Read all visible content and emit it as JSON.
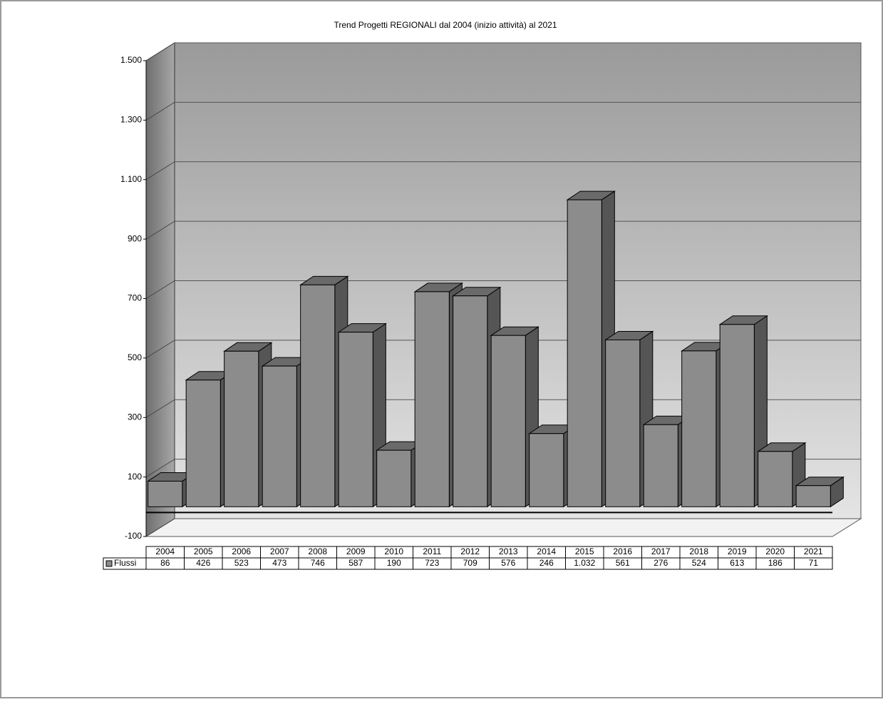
{
  "chart_data": {
    "type": "bar3d",
    "title": "Trend Progetti REGIONALI dal 2004 (inizio attività)  al 2021",
    "categories": [
      "2004",
      "2005",
      "2006",
      "2007",
      "2008",
      "2009",
      "2010",
      "2011",
      "2012",
      "2013",
      "2014",
      "2015",
      "2016",
      "2017",
      "2018",
      "2019",
      "2020",
      "2021"
    ],
    "series": [
      {
        "name": "Flussi",
        "color": "#8c8c8c",
        "values": [
          86,
          426,
          523,
          473,
          746,
          587,
          190,
          723,
          709,
          576,
          246,
          1032,
          561,
          276,
          524,
          613,
          186,
          71
        ],
        "value_labels": [
          "86",
          "426",
          "523",
          "473",
          "746",
          "587",
          "190",
          "723",
          "709",
          "576",
          "246",
          "1.032",
          "561",
          "276",
          "524",
          "613",
          "186",
          "71"
        ]
      }
    ],
    "ylim": [
      -100,
      1500
    ],
    "yticks": [
      -100,
      100,
      300,
      500,
      700,
      900,
      {
        "value": 1100,
        "label": "1.100"
      },
      {
        "value": 1300,
        "label": "1.300"
      },
      {
        "value": 1500,
        "label": "1.500"
      }
    ],
    "grid": true
  }
}
